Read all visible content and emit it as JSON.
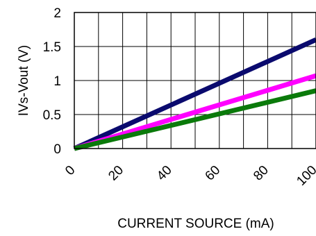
{
  "chart_data": {
    "type": "line",
    "xlabel": "CURRENT SOURCE (mA)",
    "ylabel": "IVs-Vout (V)",
    "xlim": [
      0,
      100
    ],
    "ylim": [
      0,
      2
    ],
    "x_ticks": [
      "0",
      "20",
      "40",
      "60",
      "80",
      "100"
    ],
    "y_ticks": [
      "0",
      "0.5",
      "1",
      "1.5",
      "2"
    ],
    "grid": true,
    "series": [
      {
        "color": "#0a0a6e",
        "x": [
          0,
          100
        ],
        "y": [
          0,
          1.6
        ]
      },
      {
        "color": "#ff00ff",
        "x": [
          0,
          100
        ],
        "y": [
          0,
          1.07
        ]
      },
      {
        "color": "#0a7a0a",
        "x": [
          0,
          100
        ],
        "y": [
          0,
          0.85
        ]
      }
    ]
  }
}
